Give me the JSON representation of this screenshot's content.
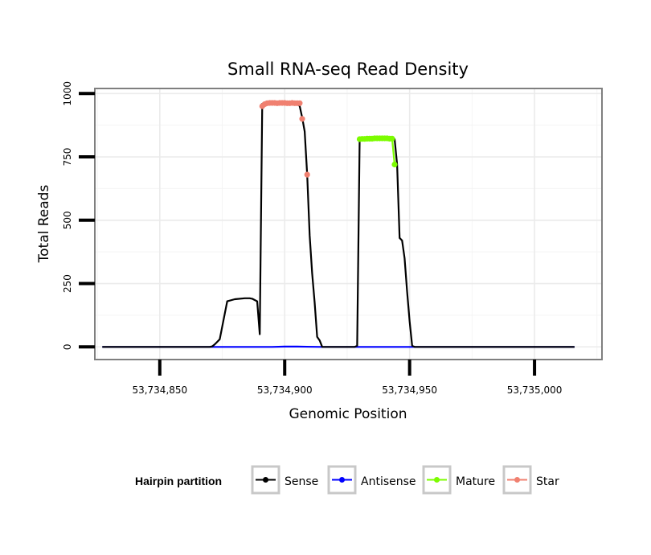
{
  "chart_data": {
    "type": "line",
    "title": "Small RNA-seq Read Density",
    "xlabel": "Genomic Position",
    "ylabel": "Total Reads",
    "xlim": [
      53734824,
      53735027
    ],
    "ylim": [
      -50,
      1020
    ],
    "x_ticks": [
      53734850,
      53734900,
      53734950,
      53735000
    ],
    "x_tick_labels": [
      "53,734,850",
      "53,734,900",
      "53,734,950",
      "53,735,000"
    ],
    "y_ticks": [
      0,
      250,
      500,
      750,
      1000
    ],
    "y_tick_labels": [
      "0",
      "250",
      "500",
      "750",
      "1000"
    ],
    "grid": true,
    "legend": {
      "title": "Hairpin partition",
      "position": "bottom",
      "entries": [
        "Sense",
        "Antisense",
        "Mature",
        "Star"
      ]
    },
    "series": [
      {
        "name": "Sense",
        "color": "#000000",
        "x": [
          53734827,
          53734870,
          53734871,
          53734872,
          53734873,
          53734874,
          53734877,
          53734880,
          53734884,
          53734886,
          53734887,
          53734888,
          53734889,
          53734890,
          53734891,
          53734892,
          53734893,
          53734896,
          53734899,
          53734902,
          53734905,
          53734906,
          53734907,
          53734908,
          53734909,
          53734910,
          53734911,
          53734912,
          53734913,
          53734914,
          53734915,
          53734928,
          53734929,
          53734930,
          53734933,
          53734936,
          53734940,
          53734943,
          53734944,
          53734945,
          53734946,
          53734947,
          53734948,
          53734949,
          53734950,
          53734951,
          53734952,
          53734953,
          53735016
        ],
        "y": [
          0,
          0,
          2,
          10,
          20,
          30,
          180,
          188,
          192,
          192,
          190,
          185,
          180,
          50,
          960,
          962,
          963,
          963,
          963,
          963,
          962,
          950,
          905,
          850,
          680,
          440,
          290,
          175,
          40,
          25,
          0,
          0,
          5,
          820,
          822,
          822,
          822,
          822,
          820,
          720,
          430,
          420,
          350,
          220,
          100,
          5,
          0,
          0,
          0
        ]
      },
      {
        "name": "Antisense",
        "color": "#0000ff",
        "x": [
          53734827,
          53734895,
          53734900,
          53734905,
          53734915,
          53734953,
          53735016
        ],
        "y": [
          0,
          0,
          1,
          1,
          0,
          0,
          0
        ]
      },
      {
        "name": "Mature",
        "color": "#7cfc00",
        "x": [
          53734930,
          53734931,
          53734932,
          53734933,
          53734934,
          53734935,
          53734936,
          53734937,
          53734938,
          53734939,
          53734940,
          53734941,
          53734942,
          53734943,
          53734944
        ],
        "y": [
          820,
          821,
          821,
          822,
          822,
          822,
          823,
          823,
          823,
          823,
          823,
          823,
          822,
          822,
          720
        ]
      },
      {
        "name": "Star",
        "color": "#f08070",
        "x": [
          53734891,
          53734892,
          53734893,
          53734894,
          53734895,
          53734896,
          53734897,
          53734898,
          53734899,
          53734900,
          53734901,
          53734902,
          53734903,
          53734904,
          53734905,
          53734906,
          53734907,
          53734909
        ],
        "y": [
          950,
          958,
          962,
          963,
          963,
          963,
          962,
          963,
          963,
          963,
          962,
          962,
          963,
          962,
          962,
          962,
          900,
          680
        ]
      }
    ],
    "series_render": {
      "Sense": "line",
      "Antisense": "line",
      "Mature": "line+points",
      "Star": "points"
    }
  }
}
